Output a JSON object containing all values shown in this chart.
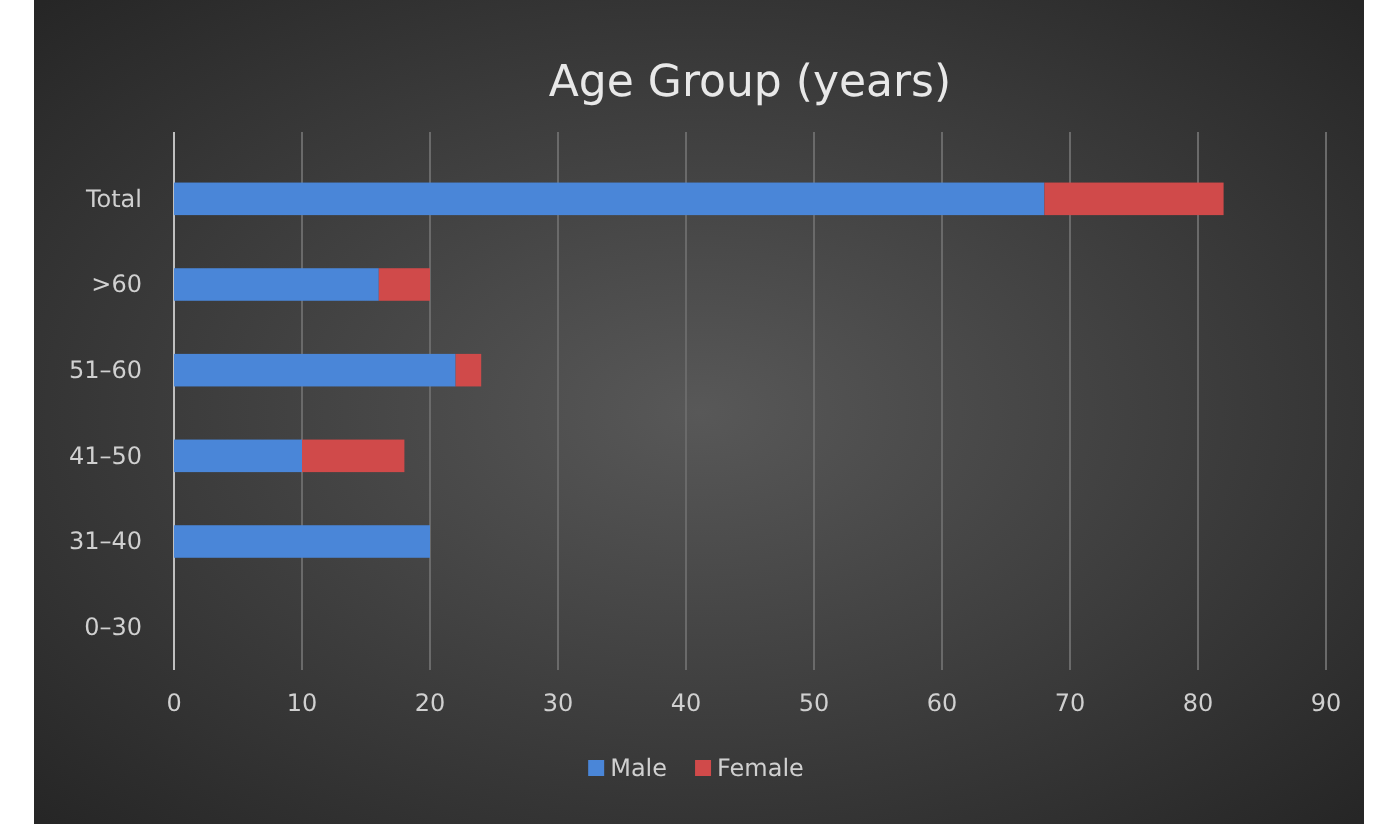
{
  "chart_data": {
    "type": "bar",
    "title": "Age Group (years)",
    "orientation": "horizontal",
    "stacked": true,
    "categories": [
      "Total",
      ">60",
      "51–60",
      "41–50",
      "31–40",
      "0–30"
    ],
    "series": [
      {
        "name": "Male",
        "color": "#4a86d8",
        "values": [
          68,
          16,
          22,
          10,
          20,
          0
        ]
      },
      {
        "name": "Female",
        "color": "#d04a4a",
        "values": [
          14,
          4,
          2,
          8,
          0,
          0
        ]
      }
    ],
    "xlim": [
      0,
      90
    ],
    "xticks": [
      0,
      10,
      20,
      30,
      40,
      50,
      60,
      70,
      80,
      90
    ],
    "grid": "x",
    "legend": "bottom"
  }
}
